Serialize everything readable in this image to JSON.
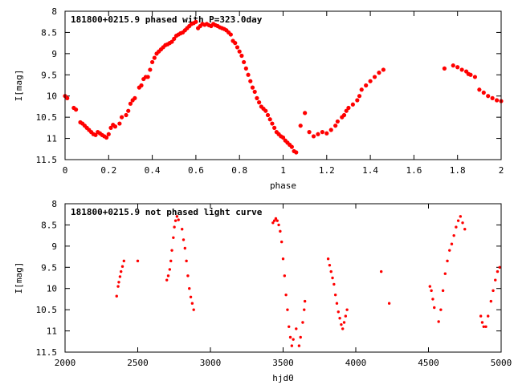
{
  "chart_data": [
    {
      "type": "scatter",
      "title": "181800+0215.9 phased with P=323.0day",
      "xlabel": "phase",
      "ylabel": "I[mag]",
      "xlim": [
        0,
        2
      ],
      "ylim": [
        11.5,
        8
      ],
      "y_inverted": true,
      "grid": false,
      "marker_color": "#ff0000",
      "x_ticks": [
        0,
        0.2,
        0.4,
        0.6,
        0.8,
        1,
        1.2,
        1.4,
        1.6,
        1.8,
        2
      ],
      "x_tick_labels": [
        "0",
        "0.2",
        "0.4",
        "0.6",
        "0.8",
        "1",
        "1.2",
        "1.4",
        "1.6",
        "1.8",
        "2"
      ],
      "y_ticks": [
        8,
        8.5,
        9,
        9.5,
        10,
        10.5,
        11,
        11.5
      ],
      "y_tick_labels": [
        "8",
        "8.5",
        "9",
        "9.5",
        "10",
        "10.5",
        "11",
        "11.5"
      ],
      "points": [
        [
          0.0,
          10.0
        ],
        [
          0.01,
          10.05
        ],
        [
          0.04,
          10.28
        ],
        [
          0.05,
          10.32
        ],
        [
          0.07,
          10.62
        ],
        [
          0.08,
          10.65
        ],
        [
          0.09,
          10.7
        ],
        [
          0.1,
          10.75
        ],
        [
          0.11,
          10.8
        ],
        [
          0.12,
          10.85
        ],
        [
          0.13,
          10.9
        ],
        [
          0.14,
          10.92
        ],
        [
          0.15,
          10.85
        ],
        [
          0.16,
          10.88
        ],
        [
          0.17,
          10.92
        ],
        [
          0.18,
          10.95
        ],
        [
          0.19,
          10.98
        ],
        [
          0.2,
          10.9
        ],
        [
          0.21,
          10.75
        ],
        [
          0.22,
          10.68
        ],
        [
          0.23,
          10.72
        ],
        [
          0.25,
          10.65
        ],
        [
          0.26,
          10.5
        ],
        [
          0.28,
          10.45
        ],
        [
          0.29,
          10.35
        ],
        [
          0.3,
          10.18
        ],
        [
          0.31,
          10.1
        ],
        [
          0.32,
          10.05
        ],
        [
          0.34,
          9.8
        ],
        [
          0.35,
          9.75
        ],
        [
          0.36,
          9.6
        ],
        [
          0.37,
          9.55
        ],
        [
          0.38,
          9.55
        ],
        [
          0.39,
          9.38
        ],
        [
          0.4,
          9.2
        ],
        [
          0.41,
          9.1
        ],
        [
          0.42,
          9.0
        ],
        [
          0.43,
          8.95
        ],
        [
          0.44,
          8.9
        ],
        [
          0.45,
          8.85
        ],
        [
          0.46,
          8.8
        ],
        [
          0.47,
          8.78
        ],
        [
          0.48,
          8.75
        ],
        [
          0.49,
          8.72
        ],
        [
          0.5,
          8.65
        ],
        [
          0.51,
          8.58
        ],
        [
          0.52,
          8.55
        ],
        [
          0.53,
          8.52
        ],
        [
          0.54,
          8.5
        ],
        [
          0.55,
          8.45
        ],
        [
          0.56,
          8.4
        ],
        [
          0.57,
          8.35
        ],
        [
          0.58,
          8.3
        ],
        [
          0.59,
          8.28
        ],
        [
          0.6,
          8.25
        ],
        [
          0.61,
          8.4
        ],
        [
          0.62,
          8.35
        ],
        [
          0.63,
          8.3
        ],
        [
          0.64,
          8.32
        ],
        [
          0.65,
          8.3
        ],
        [
          0.66,
          8.33
        ],
        [
          0.67,
          8.35
        ],
        [
          0.68,
          8.3
        ],
        [
          0.69,
          8.33
        ],
        [
          0.7,
          8.35
        ],
        [
          0.71,
          8.38
        ],
        [
          0.72,
          8.4
        ],
        [
          0.73,
          8.42
        ],
        [
          0.74,
          8.45
        ],
        [
          0.75,
          8.5
        ],
        [
          0.76,
          8.55
        ],
        [
          0.77,
          8.7
        ],
        [
          0.78,
          8.75
        ],
        [
          0.79,
          8.85
        ],
        [
          0.8,
          8.95
        ],
        [
          0.81,
          9.05
        ],
        [
          0.82,
          9.2
        ],
        [
          0.83,
          9.35
        ],
        [
          0.84,
          9.5
        ],
        [
          0.85,
          9.65
        ],
        [
          0.86,
          9.8
        ],
        [
          0.87,
          9.9
        ],
        [
          0.88,
          10.05
        ],
        [
          0.89,
          10.15
        ],
        [
          0.9,
          10.25
        ],
        [
          0.91,
          10.3
        ],
        [
          0.92,
          10.35
        ],
        [
          0.93,
          10.45
        ],
        [
          0.94,
          10.55
        ],
        [
          0.95,
          10.65
        ],
        [
          0.96,
          10.75
        ],
        [
          0.97,
          10.85
        ],
        [
          0.98,
          10.9
        ],
        [
          0.99,
          10.95
        ],
        [
          1.0,
          10.98
        ],
        [
          1.01,
          11.05
        ],
        [
          1.02,
          11.1
        ],
        [
          1.03,
          11.15
        ],
        [
          1.04,
          11.2
        ],
        [
          1.05,
          11.3
        ],
        [
          1.06,
          11.33
        ],
        [
          1.08,
          10.7
        ],
        [
          1.1,
          10.4
        ],
        [
          1.12,
          10.85
        ],
        [
          1.14,
          10.95
        ],
        [
          1.16,
          10.9
        ],
        [
          1.18,
          10.85
        ],
        [
          1.2,
          10.88
        ],
        [
          1.22,
          10.8
        ],
        [
          1.24,
          10.7
        ],
        [
          1.25,
          10.6
        ],
        [
          1.27,
          10.5
        ],
        [
          1.28,
          10.45
        ],
        [
          1.29,
          10.35
        ],
        [
          1.3,
          10.28
        ],
        [
          1.32,
          10.2
        ],
        [
          1.34,
          10.1
        ],
        [
          1.35,
          10.0
        ],
        [
          1.36,
          9.85
        ],
        [
          1.38,
          9.75
        ],
        [
          1.4,
          9.65
        ],
        [
          1.42,
          9.55
        ],
        [
          1.44,
          9.45
        ],
        [
          1.46,
          9.38
        ],
        [
          1.74,
          9.35
        ],
        [
          1.78,
          9.28
        ],
        [
          1.8,
          9.32
        ],
        [
          1.82,
          9.38
        ],
        [
          1.84,
          9.42
        ],
        [
          1.85,
          9.48
        ],
        [
          1.86,
          9.5
        ],
        [
          1.88,
          9.55
        ],
        [
          1.9,
          9.85
        ],
        [
          1.92,
          9.92
        ],
        [
          1.94,
          10.0
        ],
        [
          1.96,
          10.05
        ],
        [
          1.98,
          10.1
        ],
        [
          2.0,
          10.12
        ]
      ]
    },
    {
      "type": "scatter",
      "title": "181800+0215.9 not phased light curve",
      "xlabel": "hjd0",
      "ylabel": "I[mag]",
      "xlim": [
        2000,
        5000
      ],
      "ylim": [
        11.5,
        8
      ],
      "y_inverted": true,
      "grid": false,
      "marker_color": "#ff0000",
      "x_ticks": [
        2000,
        2500,
        3000,
        3500,
        4000,
        4500,
        5000
      ],
      "x_tick_labels": [
        "2000",
        "2500",
        "3000",
        "3500",
        "4000",
        "4500",
        "5000"
      ],
      "y_ticks": [
        8,
        8.5,
        9,
        9.5,
        10,
        10.5,
        11,
        11.5
      ],
      "y_tick_labels": [
        "8",
        "8.5",
        "9",
        "9.5",
        "10",
        "10.5",
        "11",
        "11.5"
      ],
      "points": [
        [
          2355,
          10.18
        ],
        [
          2365,
          9.95
        ],
        [
          2370,
          9.85
        ],
        [
          2378,
          9.72
        ],
        [
          2385,
          9.6
        ],
        [
          2395,
          9.48
        ],
        [
          2405,
          9.35
        ],
        [
          2500,
          9.35
        ],
        [
          2700,
          9.8
        ],
        [
          2710,
          9.7
        ],
        [
          2720,
          9.55
        ],
        [
          2728,
          9.35
        ],
        [
          2735,
          9.1
        ],
        [
          2745,
          8.8
        ],
        [
          2752,
          8.55
        ],
        [
          2760,
          8.4
        ],
        [
          2770,
          8.3
        ],
        [
          2780,
          8.38
        ],
        [
          2805,
          8.6
        ],
        [
          2815,
          8.85
        ],
        [
          2825,
          9.05
        ],
        [
          2835,
          9.35
        ],
        [
          2845,
          9.7
        ],
        [
          2855,
          10.0
        ],
        [
          2865,
          10.2
        ],
        [
          2875,
          10.35
        ],
        [
          2885,
          10.5
        ],
        [
          3430,
          8.45
        ],
        [
          3440,
          8.4
        ],
        [
          3450,
          8.35
        ],
        [
          3460,
          8.4
        ],
        [
          3470,
          8.5
        ],
        [
          3480,
          8.65
        ],
        [
          3490,
          8.9
        ],
        [
          3500,
          9.3
        ],
        [
          3510,
          9.7
        ],
        [
          3520,
          10.15
        ],
        [
          3530,
          10.5
        ],
        [
          3540,
          10.9
        ],
        [
          3550,
          11.15
        ],
        [
          3560,
          11.35
        ],
        [
          3570,
          11.2
        ],
        [
          3590,
          10.95
        ],
        [
          3610,
          11.35
        ],
        [
          3620,
          11.15
        ],
        [
          3635,
          10.8
        ],
        [
          3645,
          10.5
        ],
        [
          3650,
          10.3
        ],
        [
          3810,
          9.3
        ],
        [
          3820,
          9.45
        ],
        [
          3830,
          9.6
        ],
        [
          3840,
          9.75
        ],
        [
          3850,
          9.9
        ],
        [
          3860,
          10.15
        ],
        [
          3870,
          10.35
        ],
        [
          3880,
          10.55
        ],
        [
          3890,
          10.7
        ],
        [
          3900,
          10.85
        ],
        [
          3910,
          10.95
        ],
        [
          3920,
          10.8
        ],
        [
          3930,
          10.65
        ],
        [
          3940,
          10.5
        ],
        [
          4175,
          9.6
        ],
        [
          4230,
          10.35
        ],
        [
          4510,
          9.95
        ],
        [
          4520,
          10.05
        ],
        [
          4530,
          10.25
        ],
        [
          4540,
          10.45
        ],
        [
          4570,
          10.78
        ],
        [
          4585,
          10.5
        ],
        [
          4600,
          10.05
        ],
        [
          4615,
          9.65
        ],
        [
          4630,
          9.35
        ],
        [
          4645,
          9.1
        ],
        [
          4660,
          8.95
        ],
        [
          4675,
          8.75
        ],
        [
          4690,
          8.55
        ],
        [
          4705,
          8.4
        ],
        [
          4720,
          8.3
        ],
        [
          4735,
          8.45
        ],
        [
          4750,
          8.6
        ],
        [
          4860,
          10.65
        ],
        [
          4870,
          10.8
        ],
        [
          4880,
          10.9
        ],
        [
          4895,
          10.9
        ],
        [
          4910,
          10.65
        ],
        [
          4930,
          10.3
        ],
        [
          4945,
          10.05
        ],
        [
          4960,
          9.8
        ],
        [
          4975,
          9.6
        ],
        [
          4990,
          9.5
        ]
      ]
    }
  ]
}
